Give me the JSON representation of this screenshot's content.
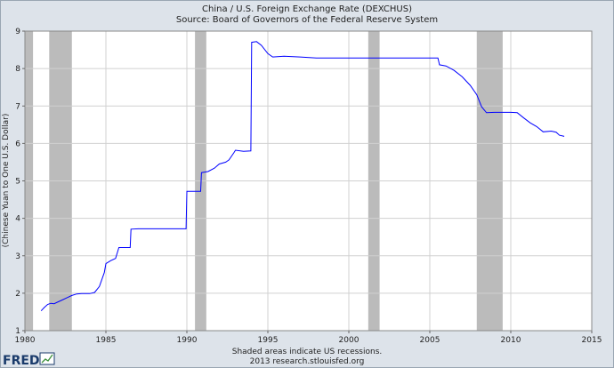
{
  "chart_data": {
    "type": "line",
    "title": "China / U.S. Foreign Exchange Rate (DEXCHUS)",
    "subtitle": "Source: Board of Governors of the Federal Reserve System",
    "ylabel": "(Chinese Yuan to One U.S. Dollar)",
    "xlabel": "",
    "xlim": [
      1980,
      2015
    ],
    "ylim": [
      1,
      9
    ],
    "x_ticks": [
      "1980",
      "1985",
      "1990",
      "1995",
      "2000",
      "2005",
      "2010",
      "2015"
    ],
    "y_ticks": [
      "1",
      "2",
      "3",
      "4",
      "5",
      "6",
      "7",
      "8",
      "9"
    ],
    "grid": true,
    "line_color": "#0000ff",
    "recession_color": "#bbbbbb",
    "recessions": [
      [
        1980.0,
        1980.5
      ],
      [
        1981.5,
        1982.9
      ],
      [
        1990.5,
        1991.2
      ],
      [
        2001.2,
        2001.9
      ],
      [
        2007.9,
        2009.5
      ]
    ],
    "series": [
      {
        "values": [
          [
            1981.0,
            1.53
          ],
          [
            1981.2,
            1.62
          ],
          [
            1981.4,
            1.7
          ],
          [
            1981.6,
            1.73
          ],
          [
            1981.8,
            1.72
          ],
          [
            1982.0,
            1.76
          ],
          [
            1982.3,
            1.82
          ],
          [
            1982.6,
            1.88
          ],
          [
            1982.9,
            1.94
          ],
          [
            1983.2,
            1.98
          ],
          [
            1983.5,
            1.99
          ],
          [
            1984.0,
            1.99
          ],
          [
            1984.3,
            2.02
          ],
          [
            1984.6,
            2.18
          ],
          [
            1984.9,
            2.55
          ],
          [
            1985.0,
            2.79
          ],
          [
            1985.3,
            2.87
          ],
          [
            1985.6,
            2.93
          ],
          [
            1985.8,
            3.22
          ],
          [
            1986.2,
            3.22
          ],
          [
            1986.5,
            3.22
          ],
          [
            1986.55,
            3.71
          ],
          [
            1987.0,
            3.72
          ],
          [
            1989.0,
            3.72
          ],
          [
            1989.95,
            3.72
          ],
          [
            1990.0,
            4.72
          ],
          [
            1990.4,
            4.72
          ],
          [
            1990.85,
            4.72
          ],
          [
            1990.9,
            5.22
          ],
          [
            1991.3,
            5.25
          ],
          [
            1991.7,
            5.34
          ],
          [
            1992.0,
            5.45
          ],
          [
            1992.4,
            5.5
          ],
          [
            1992.6,
            5.56
          ],
          [
            1992.9,
            5.75
          ],
          [
            1993.0,
            5.82
          ],
          [
            1993.5,
            5.79
          ],
          [
            1993.95,
            5.8
          ],
          [
            1994.0,
            8.7
          ],
          [
            1994.3,
            8.72
          ],
          [
            1994.6,
            8.62
          ],
          [
            1995.0,
            8.4
          ],
          [
            1995.3,
            8.31
          ],
          [
            1996.0,
            8.33
          ],
          [
            1997.0,
            8.31
          ],
          [
            1998.0,
            8.28
          ],
          [
            2000.0,
            8.28
          ],
          [
            2003.0,
            8.28
          ],
          [
            2005.5,
            8.28
          ],
          [
            2005.6,
            8.1
          ],
          [
            2006.0,
            8.07
          ],
          [
            2006.5,
            7.95
          ],
          [
            2007.0,
            7.78
          ],
          [
            2007.5,
            7.55
          ],
          [
            2007.9,
            7.3
          ],
          [
            2008.2,
            6.98
          ],
          [
            2008.5,
            6.82
          ],
          [
            2009.0,
            6.83
          ],
          [
            2010.0,
            6.83
          ],
          [
            2010.4,
            6.82
          ],
          [
            2010.8,
            6.68
          ],
          [
            2011.2,
            6.55
          ],
          [
            2011.6,
            6.45
          ],
          [
            2012.0,
            6.31
          ],
          [
            2012.5,
            6.33
          ],
          [
            2012.8,
            6.3
          ],
          [
            2013.0,
            6.22
          ],
          [
            2013.3,
            6.19
          ]
        ]
      }
    ]
  },
  "footer": {
    "recession_note": "Shaded areas indicate US recessions.",
    "credit": "2013 research.stlouisfed.org",
    "logo_text": "FRED"
  }
}
